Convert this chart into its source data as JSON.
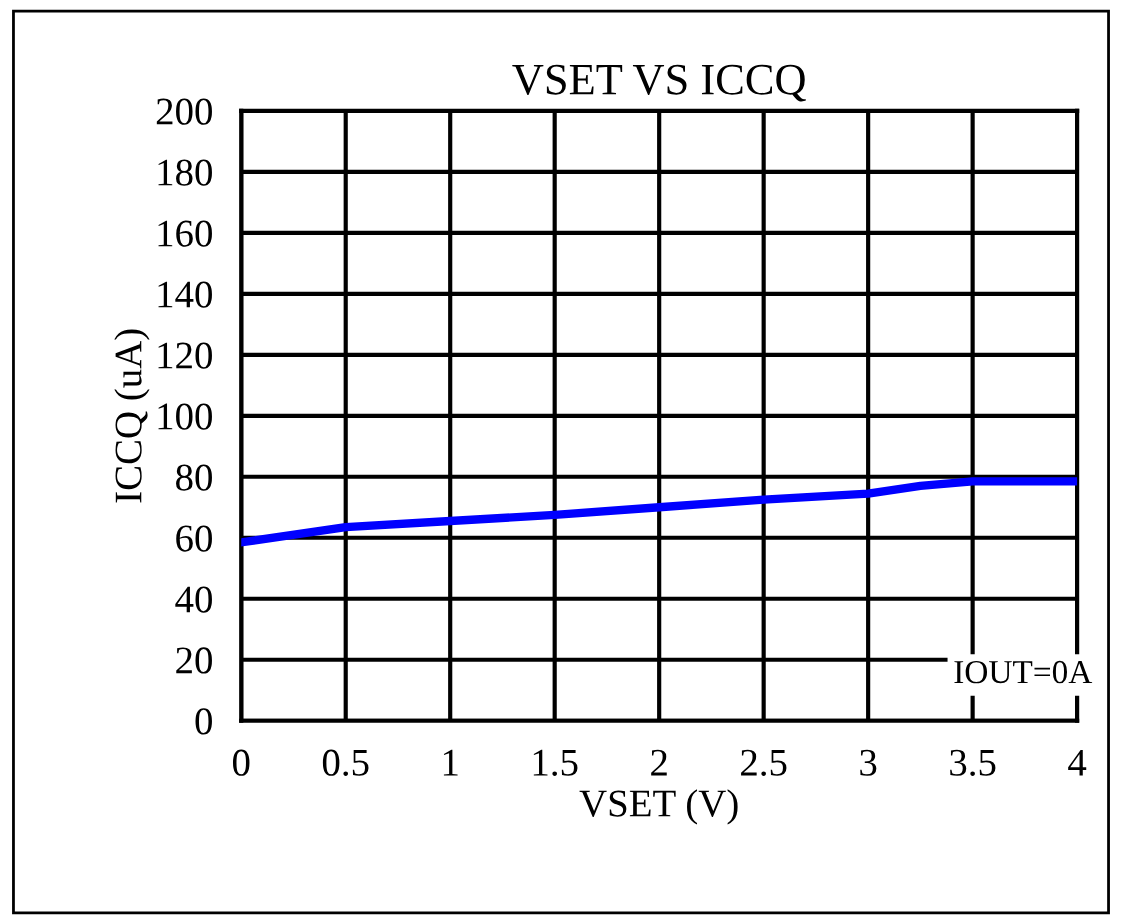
{
  "chart_data": {
    "type": "line",
    "title": "VSET VS ICCQ",
    "xlabel": "VSET (V)",
    "ylabel": "ICCQ (uA)",
    "x": [
      0,
      0.5,
      1,
      1.5,
      2,
      2.5,
      3,
      3.25,
      3.5,
      4
    ],
    "series": [
      {
        "color": "#0000ff",
        "values": [
          58.5,
          63.5,
          65.5,
          67.5,
          70,
          72.5,
          74.5,
          77,
          78.5,
          78.5
        ]
      }
    ],
    "xlim": [
      0,
      4
    ],
    "xticks": [
      0,
      0.5,
      1,
      1.5,
      2,
      2.5,
      3,
      3.5,
      4
    ],
    "ylim": [
      0,
      200
    ],
    "yticks": [
      0,
      20,
      40,
      60,
      80,
      100,
      120,
      140,
      160,
      180,
      200
    ],
    "grid": true,
    "marker": "none",
    "line_style": "solid",
    "annotations": [
      "IOUT=0A"
    ]
  }
}
